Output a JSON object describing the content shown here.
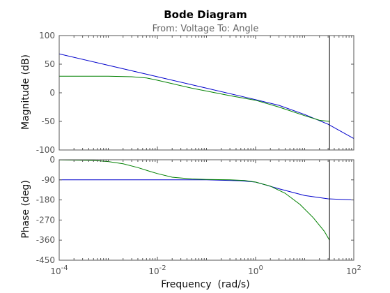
{
  "chart_data": {
    "type": "line",
    "title": "Bode Diagram",
    "subtitle": "From: Voltage  To: Angle",
    "xlabel": "Frequency  (rad/s)",
    "x_scale": "log",
    "xlim": [
      0.0001,
      100
    ],
    "x_tick_values": [
      0.0001,
      0.01,
      1,
      100
    ],
    "x_tick_labels": [
      {
        "base": "10",
        "exp": "-4"
      },
      {
        "base": "10",
        "exp": "-2"
      },
      {
        "base": "10",
        "exp": "0"
      },
      {
        "base": "10",
        "exp": "2"
      }
    ],
    "grid": false,
    "vertical_marker_x": 32,
    "colors": {
      "blue_series": "#0000cc",
      "green_series": "#008000",
      "marker": "#000000",
      "axes_box": "#555555"
    },
    "panels": [
      {
        "id": "magnitude",
        "ylabel": "Magnitude (dB)",
        "ylim": [
          -100,
          100
        ],
        "y_ticks": [
          100,
          50,
          0,
          -50,
          -100
        ],
        "series": [
          {
            "color": "#0000cc",
            "points": [
              [
                0.0001,
                68
              ],
              [
                0.001,
                48
              ],
              [
                0.01,
                28
              ],
              [
                0.1,
                8
              ],
              [
                1,
                -12
              ],
              [
                3,
                -22
              ],
              [
                10,
                -38
              ],
              [
                30,
                -55
              ],
              [
                100,
                -80
              ]
            ]
          },
          {
            "color": "#008000",
            "points": [
              [
                0.0001,
                29
              ],
              [
                0.001,
                29
              ],
              [
                0.003,
                28
              ],
              [
                0.006,
                26
              ],
              [
                0.01,
                22
              ],
              [
                0.02,
                16
              ],
              [
                0.05,
                8
              ],
              [
                0.1,
                3
              ],
              [
                0.3,
                -5
              ],
              [
                1,
                -13
              ],
              [
                3,
                -25
              ],
              [
                10,
                -40
              ],
              [
                20,
                -48
              ],
              [
                32,
                -50
              ]
            ]
          }
        ]
      },
      {
        "id": "phase",
        "ylabel": "Phase (deg)",
        "ylim": [
          -450,
          0
        ],
        "y_ticks": [
          0,
          -90,
          -180,
          -270,
          -360,
          -450
        ],
        "series": [
          {
            "color": "#0000cc",
            "points": [
              [
                0.0001,
                -90
              ],
              [
                0.1,
                -90
              ],
              [
                0.5,
                -94
              ],
              [
                1,
                -100
              ],
              [
                3,
                -130
              ],
              [
                10,
                -160
              ],
              [
                30,
                -175
              ],
              [
                100,
                -180
              ]
            ]
          },
          {
            "color": "#008000",
            "points": [
              [
                0.0001,
                -1
              ],
              [
                0.0005,
                -3
              ],
              [
                0.001,
                -8
              ],
              [
                0.002,
                -18
              ],
              [
                0.004,
                -35
              ],
              [
                0.007,
                -52
              ],
              [
                0.01,
                -62
              ],
              [
                0.02,
                -78
              ],
              [
                0.05,
                -86
              ],
              [
                0.1,
                -88
              ],
              [
                0.3,
                -90
              ],
              [
                0.6,
                -93
              ],
              [
                1,
                -100
              ],
              [
                2,
                -118
              ],
              [
                4,
                -150
              ],
              [
                8,
                -200
              ],
              [
                15,
                -260
              ],
              [
                25,
                -320
              ],
              [
                32,
                -360
              ]
            ]
          }
        ]
      }
    ]
  }
}
